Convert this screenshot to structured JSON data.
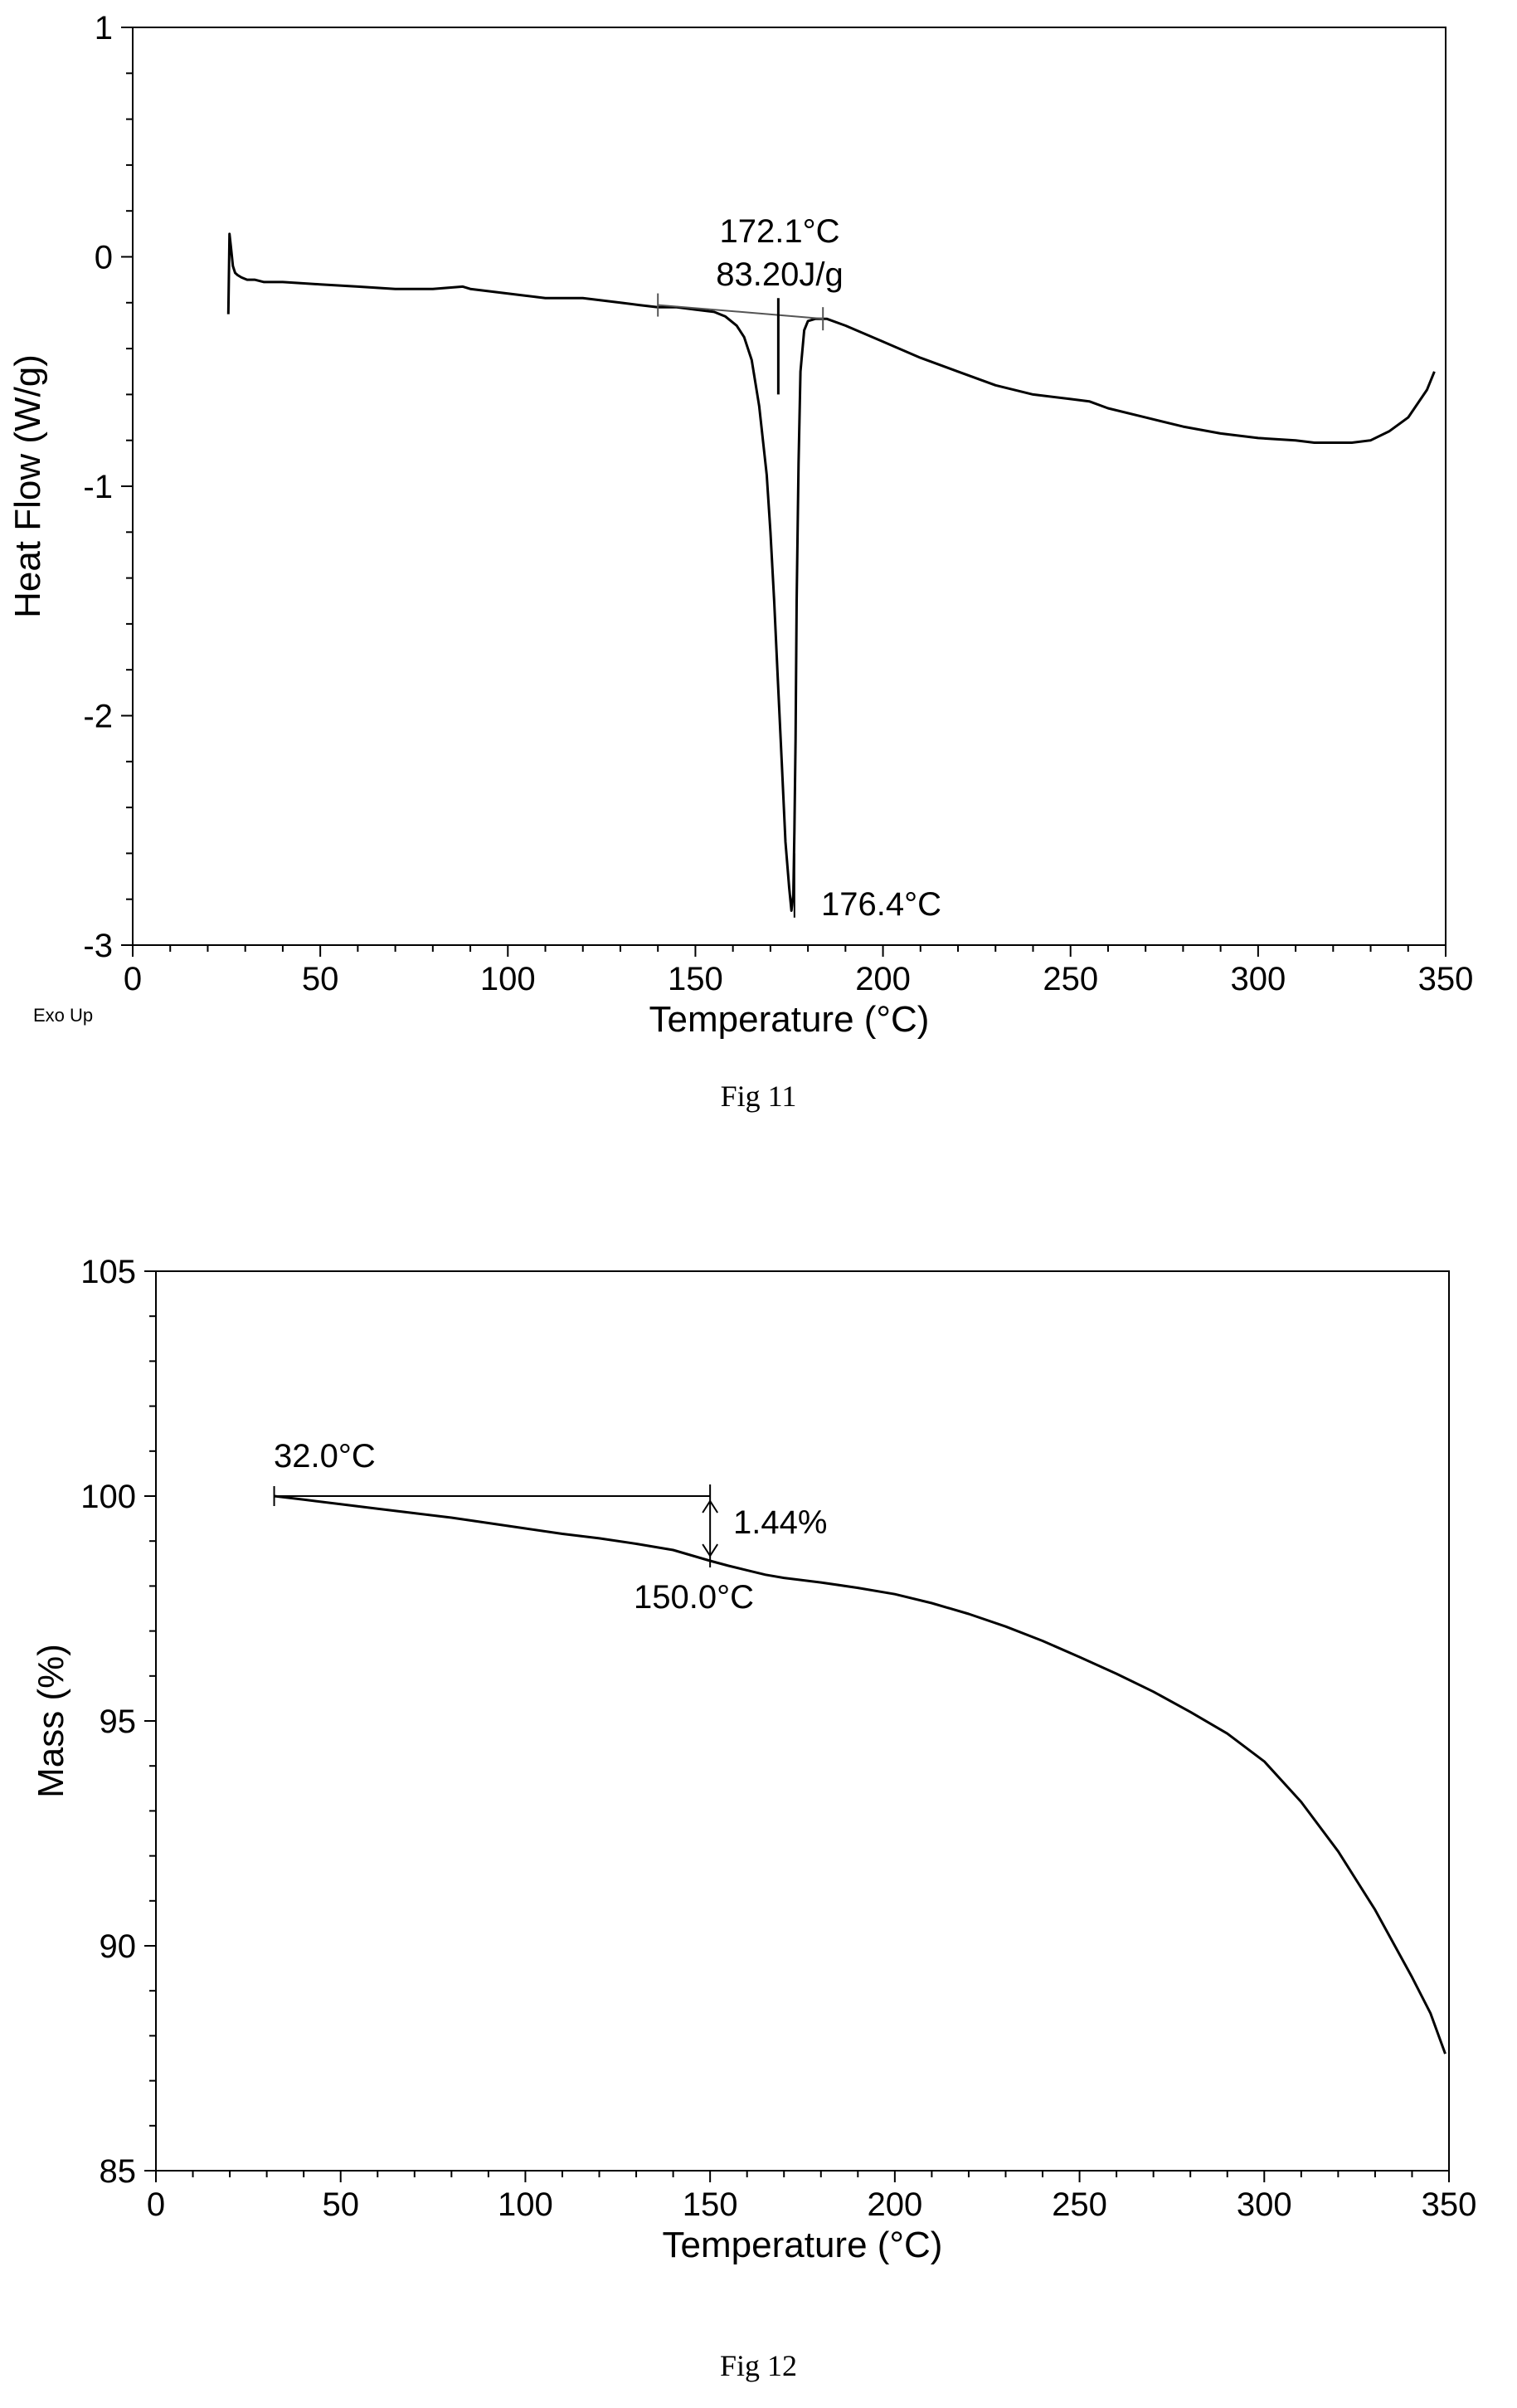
{
  "figures": [
    {
      "caption": "Fig 11"
    },
    {
      "caption": "Fig 12"
    }
  ],
  "chart_data": [
    {
      "type": "line",
      "xlabel": "Temperature (°C)",
      "ylabel": "Heat Flow (W/g)",
      "corner_label": "Exo Up",
      "xlim": [
        0,
        350
      ],
      "ylim": [
        -3,
        1
      ],
      "x_ticks": [
        0,
        50,
        100,
        150,
        200,
        250,
        300,
        350
      ],
      "y_ticks": [
        -3,
        -2,
        -1,
        0,
        1
      ],
      "grid": false,
      "series": [
        {
          "x": [
            25.5,
            25.8,
            26.2,
            26.7,
            27.3,
            28.0,
            29.0,
            30.5,
            32.5,
            35,
            40,
            50,
            60,
            70,
            80,
            88,
            90,
            95,
            100,
            105,
            110,
            115,
            120,
            125,
            130,
            135,
            140,
            145,
            150,
            155,
            158,
            161,
            163,
            165,
            167,
            169,
            170,
            171,
            172,
            173,
            174,
            175,
            175.6,
            176.1,
            176.4,
            176.7,
            177.0,
            177.5,
            178,
            179,
            180,
            182,
            185,
            190,
            200,
            210,
            220,
            230,
            240,
            250,
            255,
            260,
            270,
            280,
            290,
            300,
            310,
            315,
            320,
            325,
            330,
            335,
            340,
            345,
            347
          ],
          "y": [
            -0.25,
            0.1,
            0.04,
            -0.04,
            -0.07,
            -0.08,
            -0.09,
            -0.1,
            -0.1,
            -0.11,
            -0.11,
            -0.12,
            -0.13,
            -0.14,
            -0.14,
            -0.13,
            -0.14,
            -0.15,
            -0.16,
            -0.17,
            -0.18,
            -0.18,
            -0.18,
            -0.19,
            -0.2,
            -0.21,
            -0.22,
            -0.22,
            -0.23,
            -0.24,
            -0.26,
            -0.3,
            -0.35,
            -0.45,
            -0.65,
            -0.95,
            -1.2,
            -1.5,
            -1.85,
            -2.2,
            -2.55,
            -2.75,
            -2.85,
            -2.78,
            -2.5,
            -2.1,
            -1.5,
            -0.9,
            -0.5,
            -0.32,
            -0.28,
            -0.27,
            -0.27,
            -0.3,
            -0.37,
            -0.44,
            -0.5,
            -0.56,
            -0.6,
            -0.62,
            -0.63,
            -0.66,
            -0.7,
            -0.74,
            -0.77,
            -0.79,
            -0.8,
            -0.81,
            -0.81,
            -0.81,
            -0.8,
            -0.76,
            -0.7,
            -0.58,
            -0.5
          ]
        }
      ],
      "baseline": {
        "x": [
          140,
          184
        ],
        "y": [
          -0.21,
          -0.27
        ]
      },
      "annotations": [
        {
          "text": "172.1°C",
          "x": 172.1,
          "y": 0.1
        },
        {
          "text": "83.20J/g",
          "x": 172.1,
          "y": -0.07
        },
        {
          "text": "176.4°C",
          "x": 176.4,
          "y": -2.85
        }
      ]
    },
    {
      "type": "line",
      "xlabel": "Temperature (°C)",
      "ylabel": "Mass (%)",
      "xlim": [
        0,
        350
      ],
      "ylim": [
        85,
        105
      ],
      "x_ticks": [
        0,
        50,
        100,
        150,
        200,
        250,
        300,
        350
      ],
      "y_ticks": [
        85,
        90,
        95,
        100,
        105
      ],
      "grid": false,
      "series": [
        {
          "x": [
            32,
            40,
            50,
            60,
            70,
            80,
            90,
            100,
            110,
            120,
            130,
            140,
            150,
            155,
            160,
            165,
            170,
            180,
            190,
            200,
            210,
            220,
            230,
            240,
            250,
            260,
            270,
            280,
            290,
            300,
            310,
            320,
            330,
            340,
            345,
            349
          ],
          "y": [
            100.0,
            99.92,
            99.82,
            99.72,
            99.62,
            99.52,
            99.4,
            99.28,
            99.16,
            99.06,
            98.94,
            98.8,
            98.56,
            98.45,
            98.35,
            98.25,
            98.18,
            98.08,
            97.96,
            97.82,
            97.62,
            97.38,
            97.1,
            96.78,
            96.42,
            96.05,
            95.65,
            95.2,
            94.72,
            94.1,
            93.2,
            92.1,
            90.8,
            89.3,
            88.5,
            87.6
          ]
        }
      ],
      "annotations": [
        {
          "text": "32.0°C",
          "x": 32.0,
          "y": 100.0
        },
        {
          "text": "150.0°C",
          "x": 150.0,
          "y": 98.56
        },
        {
          "text": "1.44%",
          "x": 150.0,
          "y": 99.28
        }
      ]
    }
  ]
}
